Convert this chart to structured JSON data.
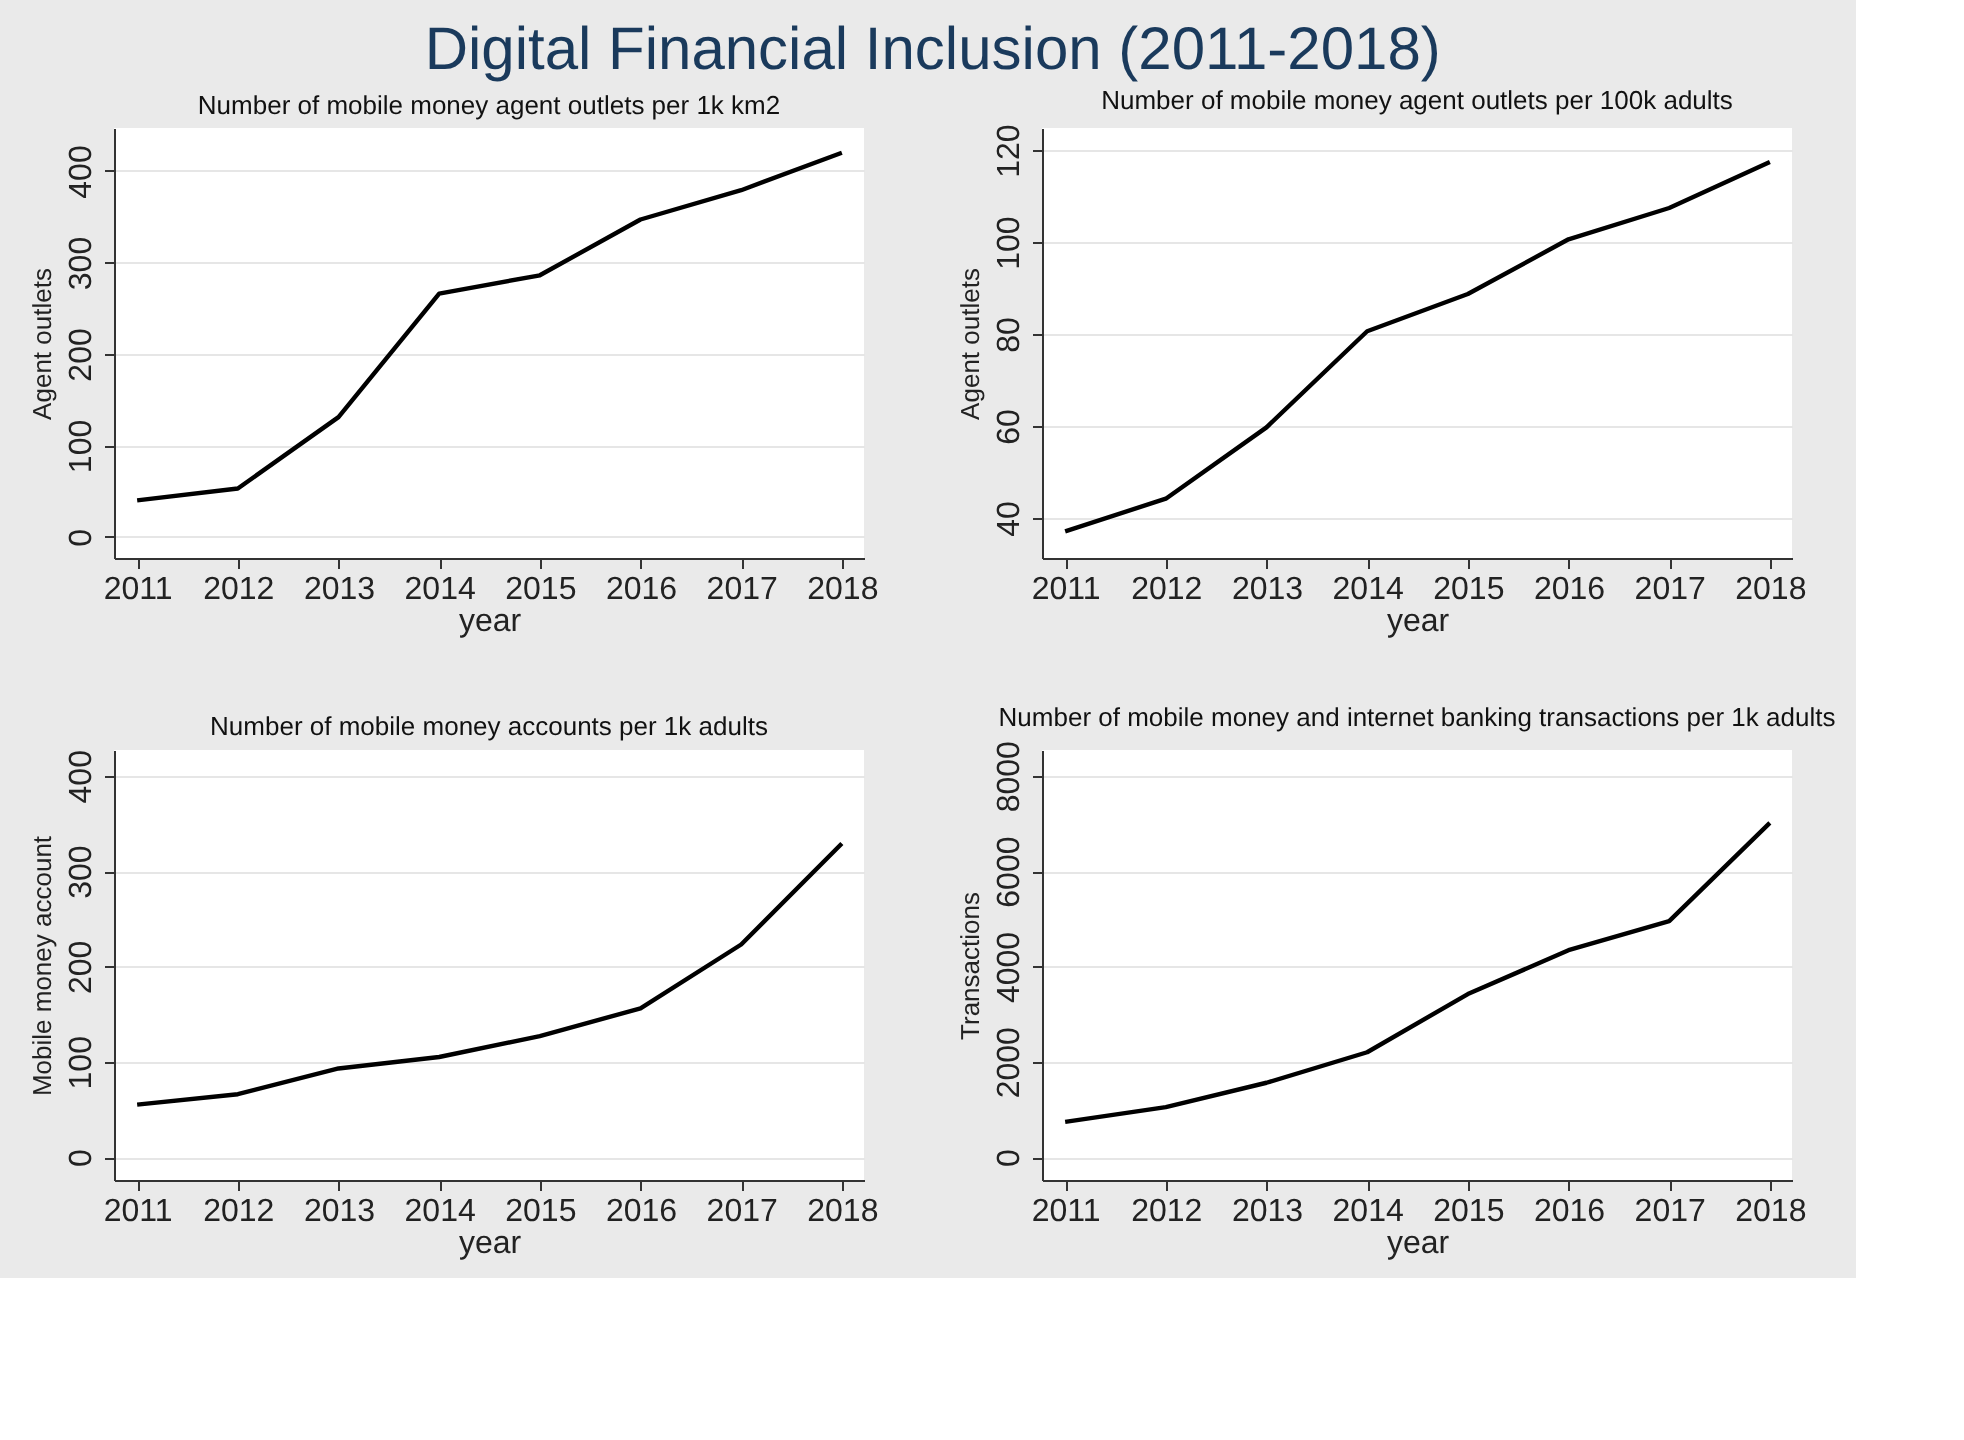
{
  "chart_data": [
    {
      "type": "line",
      "title": "Number of mobile money agent outlets per 1k km2",
      "xlabel": "year",
      "ylabel": "Agent outlets",
      "annotations": [
        "Digital Financial Inclusion (2011-2018)"
      ],
      "x": [
        2011,
        2012,
        2013,
        2014,
        2015,
        2016,
        2017,
        2018
      ],
      "values": [
        40,
        53,
        131,
        266,
        286,
        347,
        379,
        420
      ],
      "color": "#000000",
      "xlim": [
        2010.77,
        2018.22
      ],
      "xticks": [
        2011,
        2012,
        2013,
        2014,
        2015,
        2016,
        2017,
        2018
      ],
      "ylim": [
        -23,
        447
      ],
      "yticks": [
        0,
        100,
        200,
        300,
        400
      ],
      "grid": "y",
      "marker": "none",
      "line_style": "solid"
    },
    {
      "type": "line",
      "title": "Number of mobile money agent outlets per 100k adults",
      "xlabel": "year",
      "ylabel": "Agent outlets",
      "x": [
        2011,
        2012,
        2013,
        2014,
        2015,
        2016,
        2017,
        2018
      ],
      "values": [
        37.1,
        44.2,
        59.7,
        80.6,
        88.7,
        100.6,
        107.4,
        117.4
      ],
      "color": "#000000",
      "xlim": [
        2010.77,
        2018.22
      ],
      "xticks": [
        2011,
        2012,
        2013,
        2014,
        2015,
        2016,
        2017,
        2018
      ],
      "ylim": [
        31.3,
        124.8
      ],
      "yticks": [
        40,
        60,
        80,
        100,
        120
      ],
      "grid": "y",
      "marker": "none",
      "line_style": "solid"
    },
    {
      "type": "line",
      "title": "Number of mobile money accounts per 1k adults",
      "xlabel": "year",
      "ylabel": "Mobile money account",
      "x": [
        2011,
        2012,
        2013,
        2014,
        2015,
        2016,
        2017,
        2018
      ],
      "values": [
        55,
        66,
        93,
        105,
        127,
        156,
        223,
        329
      ],
      "color": "#000000",
      "xlim": [
        2010.77,
        2018.22
      ],
      "xticks": [
        2011,
        2012,
        2013,
        2014,
        2015,
        2016,
        2017,
        2018
      ],
      "ylim": [
        -24,
        427
      ],
      "yticks": [
        0,
        100,
        200,
        300,
        400
      ],
      "grid": "y",
      "marker": "none",
      "line_style": "solid"
    },
    {
      "type": "line",
      "title": "Number of mobile money and internet banking transactions per 1k adults",
      "xlabel": "year",
      "ylabel": "Transactions",
      "x": [
        2011,
        2012,
        2013,
        2014,
        2015,
        2016,
        2017,
        2018
      ],
      "values": [
        740,
        1050,
        1560,
        2200,
        3420,
        4340,
        4950,
        7010
      ],
      "color": "#000000",
      "xlim": [
        2010.77,
        2018.22
      ],
      "xticks": [
        2011,
        2012,
        2013,
        2014,
        2015,
        2016,
        2017,
        2018
      ],
      "ylim": [
        -480,
        8540
      ],
      "yticks": [
        0,
        2000,
        4000,
        6000,
        8000
      ],
      "grid": "y",
      "marker": "none",
      "line_style": "solid"
    }
  ]
}
